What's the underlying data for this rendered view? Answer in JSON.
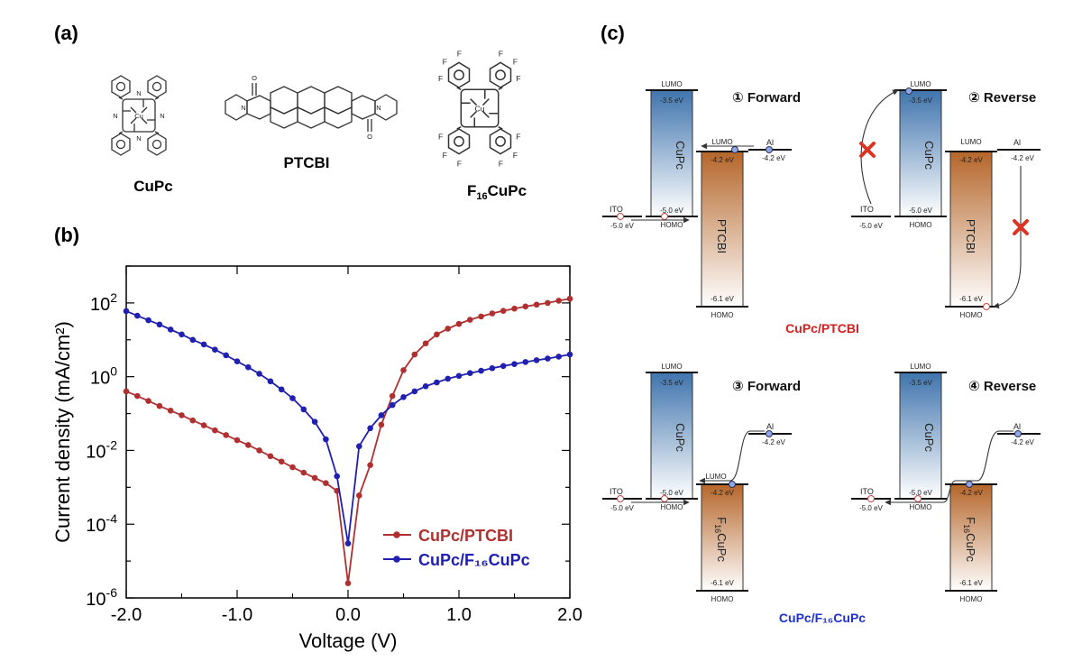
{
  "panels": {
    "a": "(a)",
    "b": "(b)",
    "c": "(c)"
  },
  "molecules": {
    "cupc": "CuPc",
    "ptcbi": "PTCBI",
    "f16cupc": {
      "prefix": "F",
      "sub": "16",
      "suffix": "CuPc"
    },
    "atoms": {
      "cu": "Cu",
      "n": "N",
      "o": "O",
      "f": "F"
    }
  },
  "chart_data": {
    "type": "line",
    "y_scale": "log",
    "xlabel": "Voltage (V)",
    "ylabel": "Current density (mA/cm²)",
    "xlim": [
      -2.0,
      2.0
    ],
    "ylim": [
      1e-06,
      1000
    ],
    "x_ticks": [
      "-2.0",
      "-1.0",
      "0.0",
      "1.0",
      "2.0"
    ],
    "y_ticks": [
      {
        "base": "10",
        "exp": "-6",
        "value": 1e-06
      },
      {
        "base": "10",
        "exp": "-4",
        "value": 0.0001
      },
      {
        "base": "10",
        "exp": "-2",
        "value": 0.01
      },
      {
        "base": "10",
        "exp": "0",
        "value": 1
      },
      {
        "base": "10",
        "exp": "2",
        "value": 100
      }
    ],
    "legend_position": "bottom-right",
    "series": [
      {
        "name": "CuPc/PTCBI",
        "color": "#b03030",
        "x": [
          -2.0,
          -1.9,
          -1.8,
          -1.7,
          -1.6,
          -1.5,
          -1.4,
          -1.3,
          -1.2,
          -1.1,
          -1.0,
          -0.9,
          -0.8,
          -0.7,
          -0.6,
          -0.5,
          -0.4,
          -0.3,
          -0.2,
          -0.1,
          0.0,
          0.1,
          0.2,
          0.3,
          0.4,
          0.5,
          0.6,
          0.7,
          0.8,
          0.9,
          1.0,
          1.1,
          1.2,
          1.3,
          1.4,
          1.5,
          1.6,
          1.7,
          1.8,
          1.9,
          2.0
        ],
        "y": [
          0.4,
          0.3,
          0.22,
          0.16,
          0.12,
          0.09,
          0.065,
          0.048,
          0.035,
          0.026,
          0.019,
          0.014,
          0.01,
          0.007,
          0.005,
          0.0035,
          0.0025,
          0.0018,
          0.0013,
          0.0008,
          2.5e-06,
          0.0006,
          0.004,
          0.05,
          0.3,
          1.5,
          4,
          8,
          14,
          20,
          27,
          35,
          43,
          52,
          61,
          70,
          80,
          90,
          100,
          115,
          130
        ]
      },
      {
        "name": "CuPc/F₁₆CuPc",
        "color": "#2020b0",
        "x": [
          -2.0,
          -1.9,
          -1.8,
          -1.7,
          -1.6,
          -1.5,
          -1.4,
          -1.3,
          -1.2,
          -1.1,
          -1.0,
          -0.9,
          -0.8,
          -0.7,
          -0.6,
          -0.5,
          -0.4,
          -0.3,
          -0.2,
          -0.1,
          0.0,
          0.1,
          0.2,
          0.3,
          0.4,
          0.5,
          0.6,
          0.7,
          0.8,
          0.9,
          1.0,
          1.1,
          1.2,
          1.3,
          1.4,
          1.5,
          1.6,
          1.7,
          1.8,
          1.9,
          2.0
        ],
        "y": [
          60,
          45,
          34,
          26,
          19,
          14,
          10,
          7.5,
          5.4,
          3.8,
          2.6,
          1.8,
          1.2,
          0.75,
          0.45,
          0.26,
          0.13,
          0.06,
          0.02,
          0.002,
          3e-05,
          0.013,
          0.04,
          0.09,
          0.17,
          0.28,
          0.4,
          0.55,
          0.7,
          0.88,
          1.05,
          1.25,
          1.45,
          1.7,
          1.95,
          2.2,
          2.5,
          2.8,
          3.1,
          3.5,
          4.0
        ]
      }
    ]
  },
  "diagram": {
    "step1": "① Forward",
    "step2": "② Reverse",
    "step3": "③ Forward",
    "step4": "④ Reverse",
    "materials": {
      "cupc": "CuPc",
      "ptcbi": "PTCBI",
      "f16_prefix": "F",
      "f16_sub": "16",
      "f16_suffix": "CuPc"
    },
    "labels": {
      "ito": "ITO",
      "al": "Al",
      "lumo": "LUMO",
      "homo": "HOMO"
    },
    "levels": {
      "cupc_lumo": "-3.5 eV",
      "cupc_homo": "-5.0 eV",
      "acceptor_lumo": "-4.2 eV",
      "acceptor_homo": "-6.1 eV",
      "ito": "-5.0 eV",
      "al": "-4.2 eV"
    },
    "captions": {
      "top": "CuPc/PTCBI",
      "top_color": "#d02020",
      "bottom": "CuPc/F₁₆CuPc",
      "bottom_color": "#2030d0"
    },
    "colors": {
      "cupc_top": "#3f74ad",
      "acc_top": "#b5662a",
      "block_mark": "#dd3322",
      "dot_blue": "#8fa6e8",
      "dot_white": "#ffffff"
    }
  }
}
